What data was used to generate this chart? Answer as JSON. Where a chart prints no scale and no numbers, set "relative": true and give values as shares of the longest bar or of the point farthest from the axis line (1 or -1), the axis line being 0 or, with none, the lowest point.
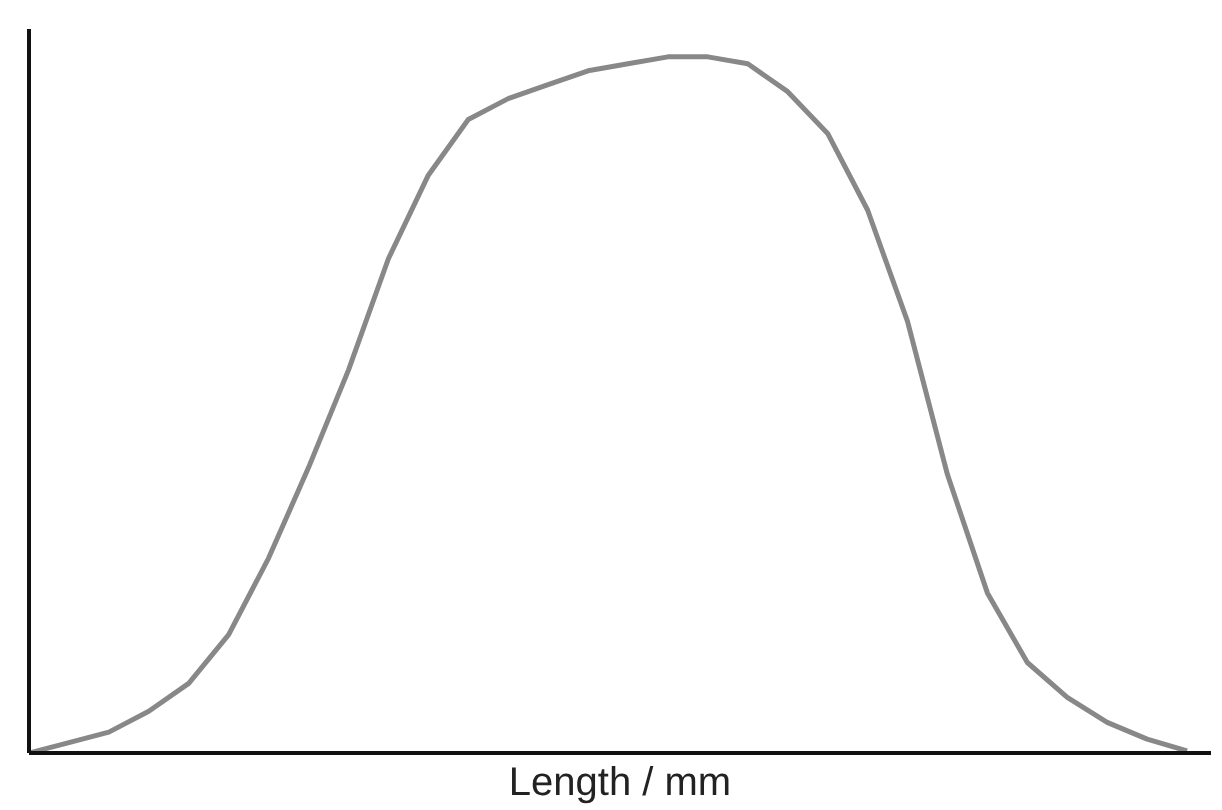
{
  "chart_data": {
    "type": "line",
    "relative": true,
    "xlabel": "Length / mm",
    "marker": "none",
    "line_style": "solid",
    "categories": [
      null,
      null,
      null,
      null,
      null,
      null,
      null,
      null,
      null,
      null,
      null,
      null,
      null,
      null,
      null,
      null,
      null,
      null,
      null,
      null,
      null,
      null,
      null,
      null,
      null,
      null,
      null,
      null,
      null,
      null
    ],
    "series": [
      {
        "color": "#888888",
        "values": [
          0,
          0.015,
          0.03,
          0.06,
          0.1,
          0.17,
          0.28,
          0.41,
          0.55,
          0.71,
          0.83,
          0.91,
          0.94,
          0.96,
          0.98,
          0.99,
          1.0,
          1.0,
          0.99,
          0.95,
          0.89,
          0.78,
          0.62,
          0.4,
          0.23,
          0.13,
          0.08,
          0.044,
          0.02,
          0.003
        ]
      }
    ]
  }
}
